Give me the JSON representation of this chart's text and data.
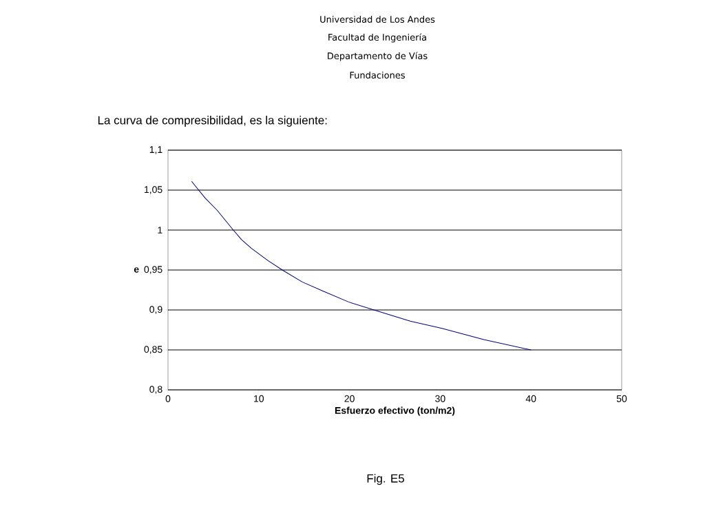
{
  "chart_data": {
    "type": "line",
    "title": "La curva de compresibilidad, es la siguiente:",
    "xlabel": "Esfuerzo efectivo (ton/m2)",
    "ylabel": "e",
    "annotations": [
      "Universidad de Los Andes",
      "Facultad de Ingeniería",
      "Departamento de Vías",
      "Fundaciones",
      "Fig. E5"
    ],
    "series": [
      {
        "color": "#000080",
        "x": [
          2.6,
          4.1,
          5.4,
          7.2,
          8.1,
          9.2,
          11,
          12.6,
          14.8,
          17.2,
          19.9,
          22.7,
          26.7,
          30.2,
          34.8,
          40
        ],
        "values": [
          1.061,
          1.04,
          1.025,
          1.0,
          0.988,
          0.977,
          0.962,
          0.95,
          0.935,
          0.923,
          0.91,
          0.9,
          0.886,
          0.877,
          0.863,
          0.85
        ]
      }
    ],
    "xlim": [
      0,
      50
    ],
    "ylim": [
      0.8,
      1.1
    ],
    "xticks": [
      0,
      10,
      20,
      30,
      40,
      50
    ],
    "yticks": [
      {
        "value": 0.8,
        "label": "0,8"
      },
      {
        "value": 0.85,
        "label": "0,85"
      },
      {
        "value": 0.9,
        "label": "0,9"
      },
      {
        "value": 0.95,
        "label": "0,95"
      },
      {
        "value": 1,
        "label": "1"
      },
      {
        "value": 1.05,
        "label": "1,05"
      },
      {
        "value": 1.1,
        "label": "1,1"
      }
    ],
    "grid": "y",
    "marker": "none",
    "line_style": "solid"
  }
}
